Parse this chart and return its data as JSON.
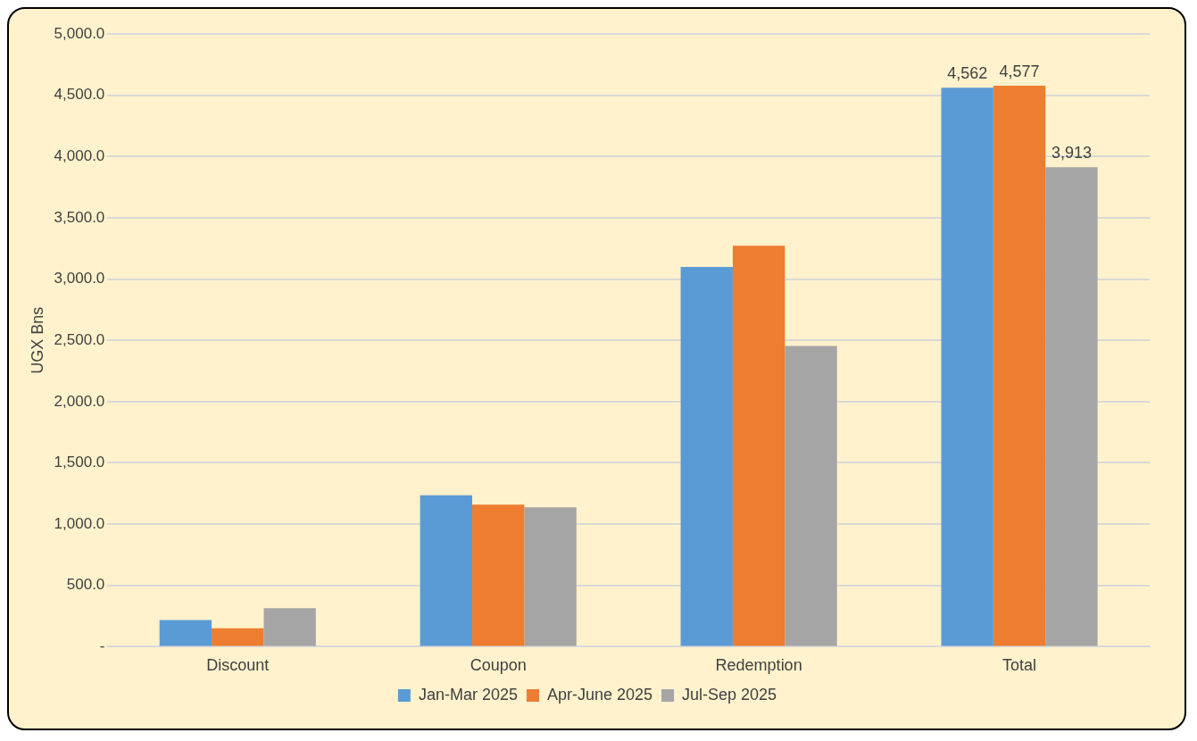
{
  "chart_data": {
    "type": "bar",
    "ylabel": "UGX Bns",
    "categories": [
      "Discount",
      "Coupon",
      "Redemption",
      "Total"
    ],
    "series": [
      {
        "name": "Jan-Mar 2025",
        "color": "#5b9bd5",
        "values": [
          217,
          1235,
          3099,
          4562
        ],
        "value_labels": [
          null,
          null,
          null,
          "4,562"
        ]
      },
      {
        "name": "Apr-June 2025",
        "color": "#ed7d31",
        "values": [
          150,
          1160,
          3271,
          4577
        ],
        "value_labels": [
          null,
          null,
          null,
          "4,577"
        ]
      },
      {
        "name": "Jul-Sep 2025",
        "color": "#a5a5a5",
        "values": [
          314,
          1138,
          2455,
          3913
        ],
        "value_labels": [
          null,
          null,
          null,
          "3,913"
        ]
      }
    ],
    "ylim": [
      0,
      5000
    ],
    "yticks": [
      {
        "value": 0,
        "label": "-"
      },
      {
        "value": 500,
        "label": "500.0"
      },
      {
        "value": 1000,
        "label": "1,000.0"
      },
      {
        "value": 1500,
        "label": "1,500.0"
      },
      {
        "value": 2000,
        "label": "2,000.0"
      },
      {
        "value": 2500,
        "label": "2,500.0"
      },
      {
        "value": 3000,
        "label": "3,000.0"
      },
      {
        "value": 3500,
        "label": "3,500.0"
      },
      {
        "value": 4000,
        "label": "4,000.0"
      },
      {
        "value": 4500,
        "label": "4,500.0"
      },
      {
        "value": 5000,
        "label": "5,000.0"
      }
    ],
    "grid": "y",
    "legend": "bottom"
  }
}
